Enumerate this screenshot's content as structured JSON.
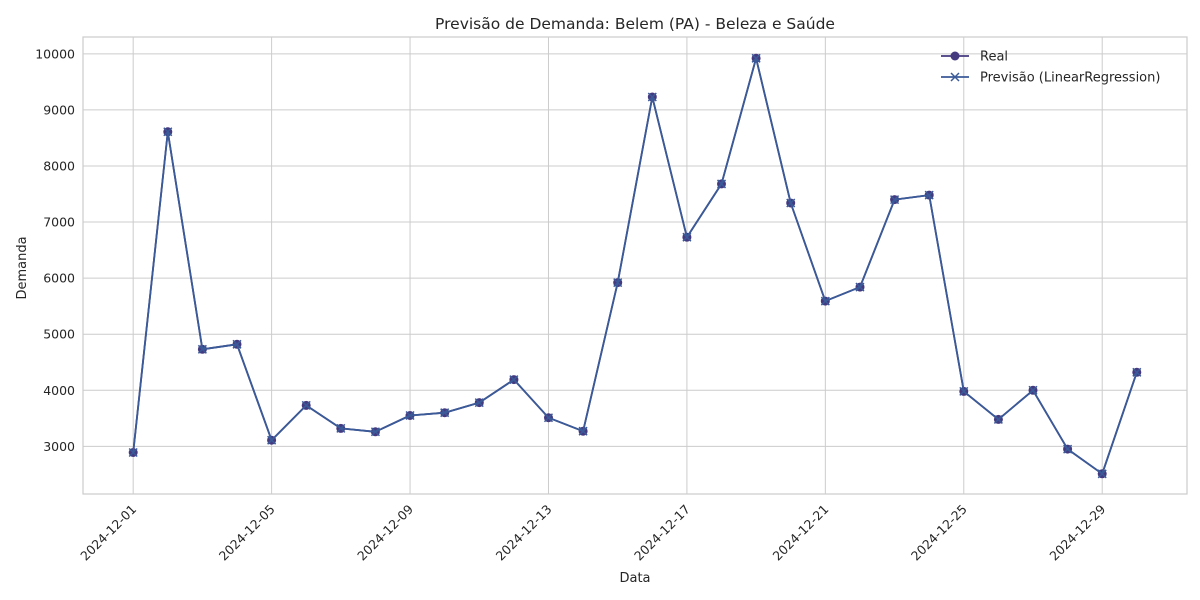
{
  "chart_data": {
    "type": "line",
    "title": "Previsão de Demanda: Belem (PA) - Beleza e Saúde",
    "xlabel": "Data",
    "ylabel": "Demanda",
    "x": [
      "2024-12-01",
      "2024-12-02",
      "2024-12-03",
      "2024-12-04",
      "2024-12-05",
      "2024-12-06",
      "2024-12-07",
      "2024-12-08",
      "2024-12-09",
      "2024-12-10",
      "2024-12-11",
      "2024-12-12",
      "2024-12-13",
      "2024-12-14",
      "2024-12-15",
      "2024-12-16",
      "2024-12-17",
      "2024-12-18",
      "2024-12-19",
      "2024-12-20",
      "2024-12-21",
      "2024-12-22",
      "2024-12-23",
      "2024-12-24",
      "2024-12-25",
      "2024-12-26",
      "2024-12-27",
      "2024-12-28",
      "2024-12-29",
      "2024-12-30"
    ],
    "xticks": [
      "2024-12-01",
      "2024-12-05",
      "2024-12-09",
      "2024-12-13",
      "2024-12-17",
      "2024-12-21",
      "2024-12-25",
      "2024-12-29"
    ],
    "yticks": [
      3000,
      4000,
      5000,
      6000,
      7000,
      8000,
      9000,
      10000
    ],
    "ylim": [
      2150,
      10300
    ],
    "grid": true,
    "legend_position": "top-right",
    "series": [
      {
        "name": "Real",
        "marker": "circle",
        "color": "#453a80",
        "values": [
          2890,
          8610,
          4730,
          4820,
          3110,
          3730,
          3320,
          3260,
          3550,
          3600,
          3780,
          4190,
          3510,
          3270,
          5920,
          9230,
          6730,
          7680,
          9920,
          7340,
          5590,
          5840,
          7400,
          7480,
          3980,
          3480,
          4000,
          2950,
          2510,
          4320
        ]
      },
      {
        "name": "Previsão (LinearRegression)",
        "marker": "x",
        "color": "#3a5a98",
        "values": [
          2890,
          8610,
          4730,
          4820,
          3110,
          3730,
          3320,
          3260,
          3550,
          3600,
          3780,
          4190,
          3510,
          3270,
          5920,
          9230,
          6730,
          7680,
          9920,
          7340,
          5590,
          5840,
          7400,
          7480,
          3980,
          3480,
          4000,
          2950,
          2510,
          4320
        ]
      }
    ]
  }
}
